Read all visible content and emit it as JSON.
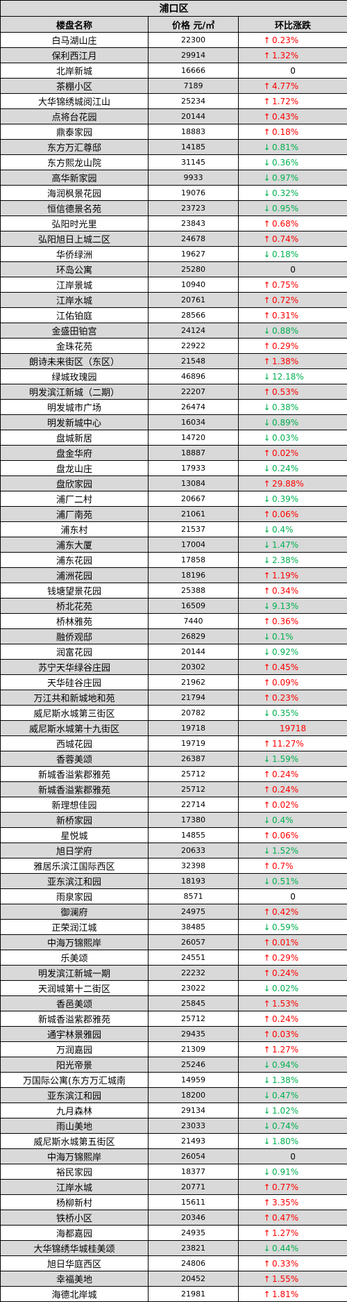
{
  "district": "浦口区",
  "headers": {
    "name": "楼盘名称",
    "price": "价格 元/㎡",
    "change": "环比涨跌"
  },
  "colors": {
    "up": "#ff0000",
    "down": "#00b050",
    "shade": "#d9d9d9"
  },
  "rows": [
    {
      "name": "白马湖山庄",
      "price": "22300",
      "dir": "up",
      "change": "0.23%"
    },
    {
      "name": "保利西江月",
      "price": "29914",
      "dir": "up",
      "change": "1.32%"
    },
    {
      "name": "北岸新城",
      "price": "16666",
      "dir": "none",
      "change": "0"
    },
    {
      "name": "茶棚小区",
      "price": "7189",
      "dir": "up",
      "change": "4.77%"
    },
    {
      "name": "大华锦绣城阅江山",
      "price": "25234",
      "dir": "up",
      "change": "1.72%"
    },
    {
      "name": "点将台花园",
      "price": "20144",
      "dir": "up",
      "change": "0.43%"
    },
    {
      "name": "鼎泰家园",
      "price": "18883",
      "dir": "up",
      "change": "0.18%"
    },
    {
      "name": "东方万汇尊邸",
      "price": "14185",
      "dir": "down",
      "change": "0.81%"
    },
    {
      "name": "东方熙龙山院",
      "price": "31145",
      "dir": "down",
      "change": "0.36%"
    },
    {
      "name": "高华新家园",
      "price": "9933",
      "dir": "down",
      "change": "0.97%"
    },
    {
      "name": "海润枫景花园",
      "price": "19076",
      "dir": "down",
      "change": "0.32%"
    },
    {
      "name": "恒信德景名苑",
      "price": "23723",
      "dir": "down",
      "change": "0.95%"
    },
    {
      "name": "弘阳时光里",
      "price": "23843",
      "dir": "up",
      "change": "0.68%"
    },
    {
      "name": "弘阳旭日上城二区",
      "price": "24678",
      "dir": "up",
      "change": "0.74%"
    },
    {
      "name": "华侨绿洲",
      "price": "19627",
      "dir": "down",
      "change": "0.18%"
    },
    {
      "name": "环岛公寓",
      "price": "25280",
      "dir": "none",
      "change": "0"
    },
    {
      "name": "江岸景城",
      "price": "10940",
      "dir": "up",
      "change": "0.75%"
    },
    {
      "name": "江岸水城",
      "price": "20761",
      "dir": "up",
      "change": "0.72%"
    },
    {
      "name": "江佑铂庭",
      "price": "28566",
      "dir": "up",
      "change": "0.31%"
    },
    {
      "name": "金盛田铂宫",
      "price": "24124",
      "dir": "down",
      "change": "0.88%"
    },
    {
      "name": "金珠花苑",
      "price": "22922",
      "dir": "up",
      "change": "0.29%"
    },
    {
      "name": "朗诗未来街区（东区）",
      "price": "21548",
      "dir": "up",
      "change": "1.38%"
    },
    {
      "name": "绿城玫瑰园",
      "price": "46896",
      "dir": "down",
      "change": "12.18%"
    },
    {
      "name": "明发滨江新城（二期）",
      "price": "22207",
      "dir": "up",
      "change": "0.53%"
    },
    {
      "name": "明发城市广场",
      "price": "26474",
      "dir": "down",
      "change": "0.38%"
    },
    {
      "name": "明发新城中心",
      "price": "16034",
      "dir": "down",
      "change": "0.89%"
    },
    {
      "name": "盘城新居",
      "price": "14720",
      "dir": "down",
      "change": "0.03%"
    },
    {
      "name": "盘金华府",
      "price": "18887",
      "dir": "up",
      "change": "0.02%"
    },
    {
      "name": "盘龙山庄",
      "price": "17933",
      "dir": "down",
      "change": "0.24%"
    },
    {
      "name": "盘欣家园",
      "price": "13084",
      "dir": "up",
      "change": "29.88%"
    },
    {
      "name": "浦厂二村",
      "price": "20667",
      "dir": "down",
      "change": "0.39%"
    },
    {
      "name": "浦厂南苑",
      "price": "21061",
      "dir": "up",
      "change": "0.06%"
    },
    {
      "name": "浦东村",
      "price": "21537",
      "dir": "down",
      "change": "0.4%"
    },
    {
      "name": "浦东大厦",
      "price": "17004",
      "dir": "down",
      "change": "1.47%"
    },
    {
      "name": "浦东花园",
      "price": "17858",
      "dir": "down",
      "change": "2.38%"
    },
    {
      "name": "浦洲花园",
      "price": "18196",
      "dir": "up",
      "change": "1.19%"
    },
    {
      "name": "钱塘望景花园",
      "price": "25388",
      "dir": "up",
      "change": "0.34%"
    },
    {
      "name": "桥北花苑",
      "price": "16509",
      "dir": "down",
      "change": "9.13%"
    },
    {
      "name": "桥林雅苑",
      "price": "7440",
      "dir": "up",
      "change": "0.36%"
    },
    {
      "name": "融侨观邸",
      "price": "26829",
      "dir": "down",
      "change": "0.1%"
    },
    {
      "name": "润富花园",
      "price": "20144",
      "dir": "down",
      "change": "0.92%"
    },
    {
      "name": "苏宁天华绿谷庄园",
      "price": "20302",
      "dir": "up",
      "change": "0.45%"
    },
    {
      "name": "天华硅谷庄园",
      "price": "21962",
      "dir": "up",
      "change": "0.09%"
    },
    {
      "name": "万江共和新城地和苑",
      "price": "21794",
      "dir": "up",
      "change": "0.23%"
    },
    {
      "name": "威尼斯水城第三街区",
      "price": "20782",
      "dir": "down",
      "change": "0.35%"
    },
    {
      "name": "威尼斯水城第十九街区",
      "price": "19718",
      "dir": "value",
      "change": "19718"
    },
    {
      "name": "西城花园",
      "price": "19719",
      "dir": "up",
      "change": "11.27%"
    },
    {
      "name": "香蓉美颂",
      "price": "26387",
      "dir": "down",
      "change": "1.59%"
    },
    {
      "name": "新城香溢紫郡雅苑",
      "price": "25712",
      "dir": "up",
      "change": "0.24%"
    },
    {
      "name": "新城香溢紫郡雅苑",
      "price": "25712",
      "dir": "up",
      "change": "0.24%"
    },
    {
      "name": "新理想佳园",
      "price": "22714",
      "dir": "up",
      "change": "0.02%"
    },
    {
      "name": "新桥家园",
      "price": "17380",
      "dir": "down",
      "change": "0.4%"
    },
    {
      "name": "星悦城",
      "price": "14855",
      "dir": "up",
      "change": "0.06%"
    },
    {
      "name": "旭日学府",
      "price": "20633",
      "dir": "down",
      "change": "1.52%"
    },
    {
      "name": "雅居乐滨江国际西区",
      "price": "32398",
      "dir": "up",
      "change": "0.7%"
    },
    {
      "name": "亚东滨江和园",
      "price": "18193",
      "dir": "down",
      "change": "0.51%"
    },
    {
      "name": "雨泉家园",
      "price": "8571",
      "dir": "none",
      "change": "0"
    },
    {
      "name": "御澜府",
      "price": "24975",
      "dir": "up",
      "change": "0.42%"
    },
    {
      "name": "正荣润江城",
      "price": "38485",
      "dir": "down",
      "change": "0.59%"
    },
    {
      "name": "中海万锦熙岸",
      "price": "26057",
      "dir": "up",
      "change": "0.01%"
    },
    {
      "name": "乐美颂",
      "price": "24551",
      "dir": "up",
      "change": "0.29%"
    },
    {
      "name": "明发滨江新城一期",
      "price": "22232",
      "dir": "up",
      "change": "0.24%"
    },
    {
      "name": "天润城第十二街区",
      "price": "23022",
      "dir": "down",
      "change": "0.02%"
    },
    {
      "name": "香邑美颂",
      "price": "25845",
      "dir": "up",
      "change": "1.53%"
    },
    {
      "name": "新城香溢紫郡雅苑",
      "price": "25712",
      "dir": "up",
      "change": "0.24%"
    },
    {
      "name": "通宇林景雅园",
      "price": "29435",
      "dir": "up",
      "change": "0.03%"
    },
    {
      "name": "万润嘉园",
      "price": "21309",
      "dir": "up",
      "change": "1.27%"
    },
    {
      "name": "阳光帝景",
      "price": "25246",
      "dir": "down",
      "change": "0.94%"
    },
    {
      "name": "万国际公寓(东方万汇城南",
      "price": "14959",
      "dir": "down",
      "change": "1.38%"
    },
    {
      "name": "亚东滨江和园",
      "price": "18200",
      "dir": "down",
      "change": "0.47%"
    },
    {
      "name": "九月森林",
      "price": "29134",
      "dir": "down",
      "change": "1.02%"
    },
    {
      "name": "雨山美地",
      "price": "23033",
      "dir": "down",
      "change": "0.74%"
    },
    {
      "name": "威尼斯水城第五街区",
      "price": "21493",
      "dir": "down",
      "change": "1.80%"
    },
    {
      "name": "中海万锦熙岸",
      "price": "26054",
      "dir": "none",
      "change": "0"
    },
    {
      "name": "裕民家园",
      "price": "18377",
      "dir": "down",
      "change": "0.91%"
    },
    {
      "name": "江岸水城",
      "price": "20771",
      "dir": "up",
      "change": "0.77%"
    },
    {
      "name": "杨柳新村",
      "price": "15611",
      "dir": "up",
      "change": "3.35%"
    },
    {
      "name": "铁桥小区",
      "price": "20346",
      "dir": "up",
      "change": "0.47%"
    },
    {
      "name": "海都嘉园",
      "price": "24935",
      "dir": "up",
      "change": "1.27%"
    },
    {
      "name": "大华锦绣华城桂美颂",
      "price": "23821",
      "dir": "down",
      "change": "0.44%"
    },
    {
      "name": "旭日华庭西区",
      "price": "24806",
      "dir": "up",
      "change": "0.33%"
    },
    {
      "name": "幸福美地",
      "price": "20452",
      "dir": "up",
      "change": "1.55%"
    },
    {
      "name": "海德北岸城",
      "price": "21981",
      "dir": "up",
      "change": "1.81%"
    }
  ]
}
